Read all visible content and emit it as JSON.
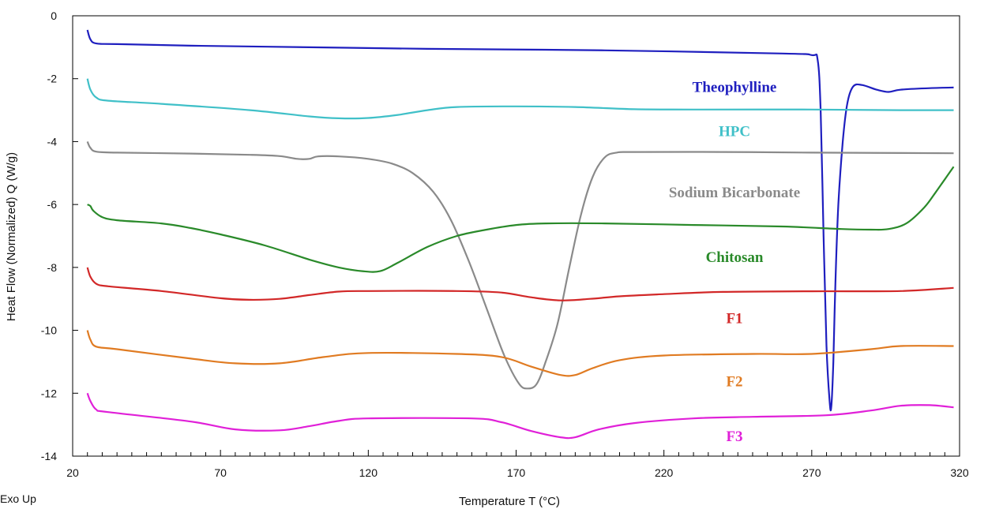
{
  "chart_data": {
    "type": "line",
    "xlabel": "Temperature T (°C)",
    "ylabel": "Heat Flow (Normalized) Q (W/g)",
    "xlim": [
      20,
      320
    ],
    "ylim": [
      -14,
      0
    ],
    "x_ticks": [
      20,
      70,
      120,
      170,
      220,
      270,
      320
    ],
    "y_ticks": [
      0,
      -2,
      -4,
      -6,
      -8,
      -10,
      -12,
      -14
    ],
    "corner_note": "Exo Up",
    "grid": false,
    "series": [
      {
        "name": "Theophylline",
        "color": "#1f1fbf",
        "label_at": [
          130,
          -2.25
        ],
        "points": [
          [
            25,
            -0.45
          ],
          [
            26,
            -0.75
          ],
          [
            28,
            -0.88
          ],
          [
            35,
            -0.9
          ],
          [
            60,
            -0.95
          ],
          [
            100,
            -1.0
          ],
          [
            140,
            -1.05
          ],
          [
            200,
            -1.1
          ],
          [
            260,
            -1.2
          ],
          [
            270,
            -1.25
          ],
          [
            272,
            -1.4
          ],
          [
            273,
            -3.0
          ],
          [
            274,
            -7.0
          ],
          [
            275,
            -10.5
          ],
          [
            276,
            -12.2
          ],
          [
            276.6,
            -12.45
          ],
          [
            277.3,
            -11.0
          ],
          [
            278,
            -8.5
          ],
          [
            279,
            -6.0
          ],
          [
            280.5,
            -4.0
          ],
          [
            282,
            -2.8
          ],
          [
            284,
            -2.25
          ],
          [
            287,
            -2.2
          ],
          [
            292,
            -2.35
          ],
          [
            296,
            -2.42
          ],
          [
            300,
            -2.35
          ],
          [
            310,
            -2.3
          ],
          [
            318,
            -2.28
          ]
        ]
      },
      {
        "name": "HPC",
        "color": "#40c0c8",
        "label_at": [
          130,
          -3.65
        ],
        "points": [
          [
            25,
            -2.0
          ],
          [
            26,
            -2.35
          ],
          [
            28,
            -2.6
          ],
          [
            32,
            -2.7
          ],
          [
            50,
            -2.8
          ],
          [
            80,
            -3.0
          ],
          [
            100,
            -3.2
          ],
          [
            110,
            -3.26
          ],
          [
            120,
            -3.25
          ],
          [
            130,
            -3.15
          ],
          [
            140,
            -3.0
          ],
          [
            150,
            -2.9
          ],
          [
            170,
            -2.88
          ],
          [
            190,
            -2.9
          ],
          [
            210,
            -2.97
          ],
          [
            230,
            -2.98
          ],
          [
            270,
            -2.98
          ],
          [
            300,
            -3.0
          ],
          [
            318,
            -3.0
          ]
        ]
      },
      {
        "name": "Sodium Bicarbonate",
        "color": "#8a8a8a",
        "label_at": [
          130,
          -5.6
        ],
        "points": [
          [
            25,
            -4.0
          ],
          [
            26,
            -4.2
          ],
          [
            28,
            -4.32
          ],
          [
            35,
            -4.35
          ],
          [
            60,
            -4.38
          ],
          [
            80,
            -4.42
          ],
          [
            90,
            -4.46
          ],
          [
            96,
            -4.55
          ],
          [
            100,
            -4.55
          ],
          [
            103,
            -4.47
          ],
          [
            110,
            -4.47
          ],
          [
            120,
            -4.55
          ],
          [
            128,
            -4.7
          ],
          [
            135,
            -5.0
          ],
          [
            142,
            -5.6
          ],
          [
            148,
            -6.5
          ],
          [
            154,
            -7.8
          ],
          [
            160,
            -9.3
          ],
          [
            166,
            -10.8
          ],
          [
            171,
            -11.7
          ],
          [
            174,
            -11.85
          ],
          [
            177,
            -11.7
          ],
          [
            180,
            -11.0
          ],
          [
            184,
            -9.8
          ],
          [
            188,
            -8.0
          ],
          [
            192,
            -6.3
          ],
          [
            196,
            -5.1
          ],
          [
            200,
            -4.5
          ],
          [
            204,
            -4.35
          ],
          [
            210,
            -4.33
          ],
          [
            240,
            -4.33
          ],
          [
            270,
            -4.35
          ],
          [
            318,
            -4.37
          ]
        ]
      },
      {
        "name": "Chitosan",
        "color": "#2a8a2a",
        "label_at": [
          130,
          -7.65
        ],
        "points": [
          [
            25,
            -6.0
          ],
          [
            26,
            -6.05
          ],
          [
            27,
            -6.2
          ],
          [
            30,
            -6.4
          ],
          [
            35,
            -6.5
          ],
          [
            50,
            -6.6
          ],
          [
            60,
            -6.75
          ],
          [
            70,
            -6.95
          ],
          [
            85,
            -7.3
          ],
          [
            100,
            -7.75
          ],
          [
            110,
            -8.0
          ],
          [
            118,
            -8.12
          ],
          [
            124,
            -8.12
          ],
          [
            130,
            -7.85
          ],
          [
            140,
            -7.35
          ],
          [
            150,
            -7.0
          ],
          [
            160,
            -6.8
          ],
          [
            170,
            -6.65
          ],
          [
            180,
            -6.6
          ],
          [
            200,
            -6.6
          ],
          [
            230,
            -6.65
          ],
          [
            260,
            -6.7
          ],
          [
            280,
            -6.78
          ],
          [
            290,
            -6.8
          ],
          [
            296,
            -6.78
          ],
          [
            302,
            -6.6
          ],
          [
            308,
            -6.1
          ],
          [
            312,
            -5.6
          ],
          [
            315,
            -5.2
          ],
          [
            318,
            -4.8
          ]
        ]
      },
      {
        "name": "F1",
        "color": "#d22828",
        "label_at": [
          130,
          -9.6
        ],
        "points": [
          [
            25,
            -8.0
          ],
          [
            26,
            -8.3
          ],
          [
            28,
            -8.52
          ],
          [
            32,
            -8.6
          ],
          [
            50,
            -8.75
          ],
          [
            70,
            -8.98
          ],
          [
            80,
            -9.03
          ],
          [
            90,
            -9.0
          ],
          [
            100,
            -8.88
          ],
          [
            110,
            -8.77
          ],
          [
            120,
            -8.75
          ],
          [
            150,
            -8.75
          ],
          [
            165,
            -8.8
          ],
          [
            175,
            -8.95
          ],
          [
            185,
            -9.05
          ],
          [
            195,
            -9.0
          ],
          [
            205,
            -8.92
          ],
          [
            220,
            -8.85
          ],
          [
            240,
            -8.78
          ],
          [
            270,
            -8.76
          ],
          [
            300,
            -8.75
          ],
          [
            318,
            -8.65
          ]
        ]
      },
      {
        "name": "F2",
        "color": "#e07b22",
        "label_at": [
          130,
          -11.6
        ],
        "points": [
          [
            25,
            -10.0
          ],
          [
            26,
            -10.3
          ],
          [
            28,
            -10.52
          ],
          [
            35,
            -10.6
          ],
          [
            60,
            -10.9
          ],
          [
            75,
            -11.05
          ],
          [
            90,
            -11.05
          ],
          [
            105,
            -10.85
          ],
          [
            120,
            -10.72
          ],
          [
            150,
            -10.75
          ],
          [
            165,
            -10.85
          ],
          [
            175,
            -11.15
          ],
          [
            185,
            -11.42
          ],
          [
            190,
            -11.42
          ],
          [
            196,
            -11.2
          ],
          [
            205,
            -10.95
          ],
          [
            220,
            -10.8
          ],
          [
            250,
            -10.75
          ],
          [
            270,
            -10.75
          ],
          [
            290,
            -10.6
          ],
          [
            300,
            -10.5
          ],
          [
            318,
            -10.5
          ]
        ]
      },
      {
        "name": "F3",
        "color": "#e020d8",
        "label_at": [
          130,
          -13.35
        ],
        "points": [
          [
            25,
            -12.0
          ],
          [
            26,
            -12.25
          ],
          [
            28,
            -12.52
          ],
          [
            32,
            -12.6
          ],
          [
            60,
            -12.9
          ],
          [
            75,
            -13.15
          ],
          [
            90,
            -13.18
          ],
          [
            100,
            -13.05
          ],
          [
            110,
            -12.88
          ],
          [
            120,
            -12.8
          ],
          [
            155,
            -12.8
          ],
          [
            165,
            -12.92
          ],
          [
            175,
            -13.2
          ],
          [
            185,
            -13.4
          ],
          [
            190,
            -13.4
          ],
          [
            198,
            -13.15
          ],
          [
            210,
            -12.95
          ],
          [
            230,
            -12.8
          ],
          [
            250,
            -12.75
          ],
          [
            275,
            -12.7
          ],
          [
            290,
            -12.55
          ],
          [
            300,
            -12.4
          ],
          [
            310,
            -12.38
          ],
          [
            318,
            -12.45
          ]
        ]
      }
    ]
  }
}
